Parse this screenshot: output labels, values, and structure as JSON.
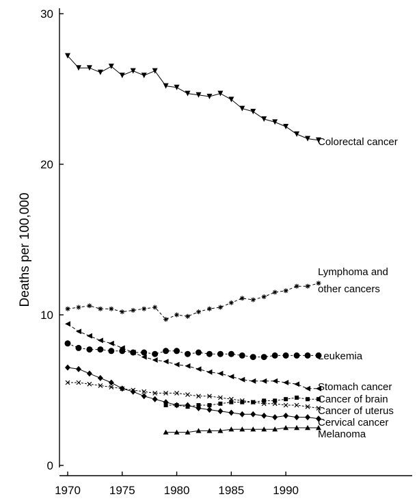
{
  "chart_data": {
    "type": "line",
    "title": "",
    "xlabel": "",
    "ylabel": "Deaths per 100,000",
    "xlim": [
      1970,
      1993
    ],
    "ylim": [
      0,
      30
    ],
    "xticks": [
      1970,
      1975,
      1980,
      1985,
      1990
    ],
    "yticks": [
      0,
      10,
      20,
      30
    ],
    "xtick_labels": [
      "1970",
      "1975",
      "1980",
      "1985",
      "1990"
    ],
    "ytick_labels": [
      "0",
      "10",
      "20",
      "30"
    ],
    "grid": false,
    "legend": "none (series labeled directly at line ends)",
    "series": [
      {
        "name": "Colorectal cancer",
        "marker": "triangle-down",
        "x": [
          1970,
          1971,
          1972,
          1973,
          1974,
          1975,
          1976,
          1977,
          1978,
          1979,
          1980,
          1981,
          1982,
          1983,
          1984,
          1985,
          1986,
          1987,
          1988,
          1989,
          1990,
          1991,
          1992,
          1993
        ],
        "values": [
          27.2,
          26.4,
          26.4,
          26.1,
          26.5,
          25.9,
          26.2,
          25.9,
          26.2,
          25.2,
          25.1,
          24.7,
          24.6,
          24.5,
          24.7,
          24.3,
          23.7,
          23.5,
          23.0,
          22.8,
          22.5,
          22.0,
          21.7,
          21.6
        ]
      },
      {
        "name": "Lymphoma and other cancers",
        "marker": "star",
        "x": [
          1970,
          1971,
          1972,
          1973,
          1974,
          1975,
          1976,
          1977,
          1978,
          1979,
          1980,
          1981,
          1982,
          1983,
          1984,
          1985,
          1986,
          1987,
          1988,
          1989,
          1990,
          1991,
          1992,
          1993
        ],
        "values": [
          10.4,
          10.5,
          10.6,
          10.4,
          10.4,
          10.2,
          10.3,
          10.4,
          10.5,
          9.7,
          10.0,
          9.9,
          10.2,
          10.4,
          10.5,
          10.8,
          11.1,
          11.0,
          11.2,
          11.5,
          11.6,
          11.9,
          11.9,
          12.1
        ]
      },
      {
        "name": "Leukemia",
        "marker": "circle",
        "x": [
          1970,
          1971,
          1972,
          1973,
          1974,
          1975,
          1976,
          1977,
          1978,
          1979,
          1980,
          1981,
          1982,
          1983,
          1984,
          1985,
          1986,
          1987,
          1988,
          1989,
          1990,
          1991,
          1992,
          1993
        ],
        "values": [
          8.1,
          7.8,
          7.7,
          7.7,
          7.6,
          7.6,
          7.5,
          7.5,
          7.4,
          7.6,
          7.6,
          7.4,
          7.5,
          7.4,
          7.4,
          7.4,
          7.3,
          7.2,
          7.2,
          7.3,
          7.3,
          7.3,
          7.3,
          7.3
        ]
      },
      {
        "name": "Stomach cancer",
        "marker": "triangle-left",
        "x": [
          1970,
          1971,
          1972,
          1973,
          1974,
          1975,
          1976,
          1977,
          1978,
          1979,
          1980,
          1981,
          1982,
          1983,
          1984,
          1985,
          1986,
          1987,
          1988,
          1989,
          1990,
          1991,
          1992,
          1993
        ],
        "values": [
          9.4,
          8.9,
          8.6,
          8.3,
          8.1,
          7.8,
          7.5,
          7.2,
          7.0,
          6.9,
          6.7,
          6.6,
          6.4,
          6.2,
          6.1,
          5.9,
          5.7,
          5.6,
          5.6,
          5.6,
          5.5,
          5.4,
          5.1,
          5.1
        ]
      },
      {
        "name": "Cancer of brain",
        "marker": "square",
        "x": [
          1979,
          1980,
          1981,
          1982,
          1983,
          1984,
          1985,
          1986,
          1987,
          1988,
          1989,
          1990,
          1991,
          1992,
          1993
        ],
        "values": [
          4.0,
          4.0,
          3.9,
          4.0,
          4.0,
          4.1,
          4.2,
          4.2,
          4.2,
          4.3,
          4.3,
          4.4,
          4.5,
          4.4,
          4.4
        ]
      },
      {
        "name": "Cancer of uterus",
        "marker": "x",
        "x": [
          1970,
          1971,
          1972,
          1973,
          1974,
          1975,
          1976,
          1977,
          1978,
          1979,
          1980,
          1981,
          1982,
          1983,
          1984,
          1985,
          1986,
          1987,
          1988,
          1989,
          1990,
          1991,
          1992,
          1993
        ],
        "values": [
          5.5,
          5.5,
          5.4,
          5.3,
          5.2,
          5.1,
          5.0,
          4.9,
          4.8,
          4.8,
          4.8,
          4.7,
          4.6,
          4.6,
          4.5,
          4.4,
          4.3,
          4.2,
          4.1,
          4.1,
          4.0,
          4.0,
          3.9,
          3.8
        ]
      },
      {
        "name": "Cervical cancer",
        "marker": "diamond",
        "x": [
          1970,
          1971,
          1972,
          1973,
          1974,
          1975,
          1976,
          1977,
          1978,
          1979,
          1980,
          1981,
          1982,
          1983,
          1984,
          1985,
          1986,
          1987,
          1988,
          1989,
          1990,
          1991,
          1992,
          1993
        ],
        "values": [
          6.5,
          6.4,
          6.1,
          5.8,
          5.5,
          5.1,
          4.9,
          4.6,
          4.4,
          4.2,
          4.0,
          4.0,
          3.8,
          3.7,
          3.6,
          3.5,
          3.4,
          3.4,
          3.3,
          3.2,
          3.3,
          3.2,
          3.2,
          3.1
        ]
      },
      {
        "name": "Melanoma",
        "marker": "triangle-up",
        "x": [
          1979,
          1980,
          1981,
          1982,
          1983,
          1984,
          1985,
          1986,
          1987,
          1988,
          1989,
          1990,
          1991,
          1992,
          1993
        ],
        "values": [
          2.2,
          2.2,
          2.2,
          2.3,
          2.3,
          2.3,
          2.4,
          2.4,
          2.4,
          2.4,
          2.4,
          2.5,
          2.5,
          2.5,
          2.5
        ]
      }
    ],
    "series_labels": {
      "colorectal": "Colorectal cancer",
      "lymphoma_line1": "Lymphoma and",
      "lymphoma_line2": "other cancers",
      "leukemia": "Leukemia",
      "stomach": "Stomach cancer",
      "brain": "Cancer of brain",
      "uterus": "Cancer of uterus",
      "cervical": "Cervical cancer",
      "melanoma": "Melanoma"
    }
  }
}
